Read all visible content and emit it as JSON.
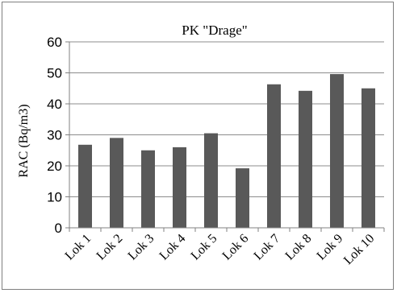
{
  "chart_data": {
    "type": "bar",
    "title": "PK \"Drage\"",
    "xlabel": "",
    "ylabel": "RAC (Bq/m3)",
    "categories": [
      "Lok 1",
      "Lok 2",
      "Lok 3",
      "Lok 4",
      "Lok 5",
      "Lok 6",
      "Lok 7",
      "Lok 8",
      "Lok 9",
      "Lok 10"
    ],
    "values": [
      26.8,
      29.0,
      25.0,
      26.0,
      30.5,
      19.2,
      46.3,
      44.2,
      49.6,
      45.0
    ],
    "ylim": [
      0,
      60
    ],
    "yticks": [
      "0",
      "10",
      "20",
      "30",
      "40",
      "50",
      "60"
    ],
    "grid": true,
    "colors": {
      "bar": "#595959",
      "grid": "#8c8c8c",
      "axis": "#808080",
      "text": "#000000"
    }
  }
}
